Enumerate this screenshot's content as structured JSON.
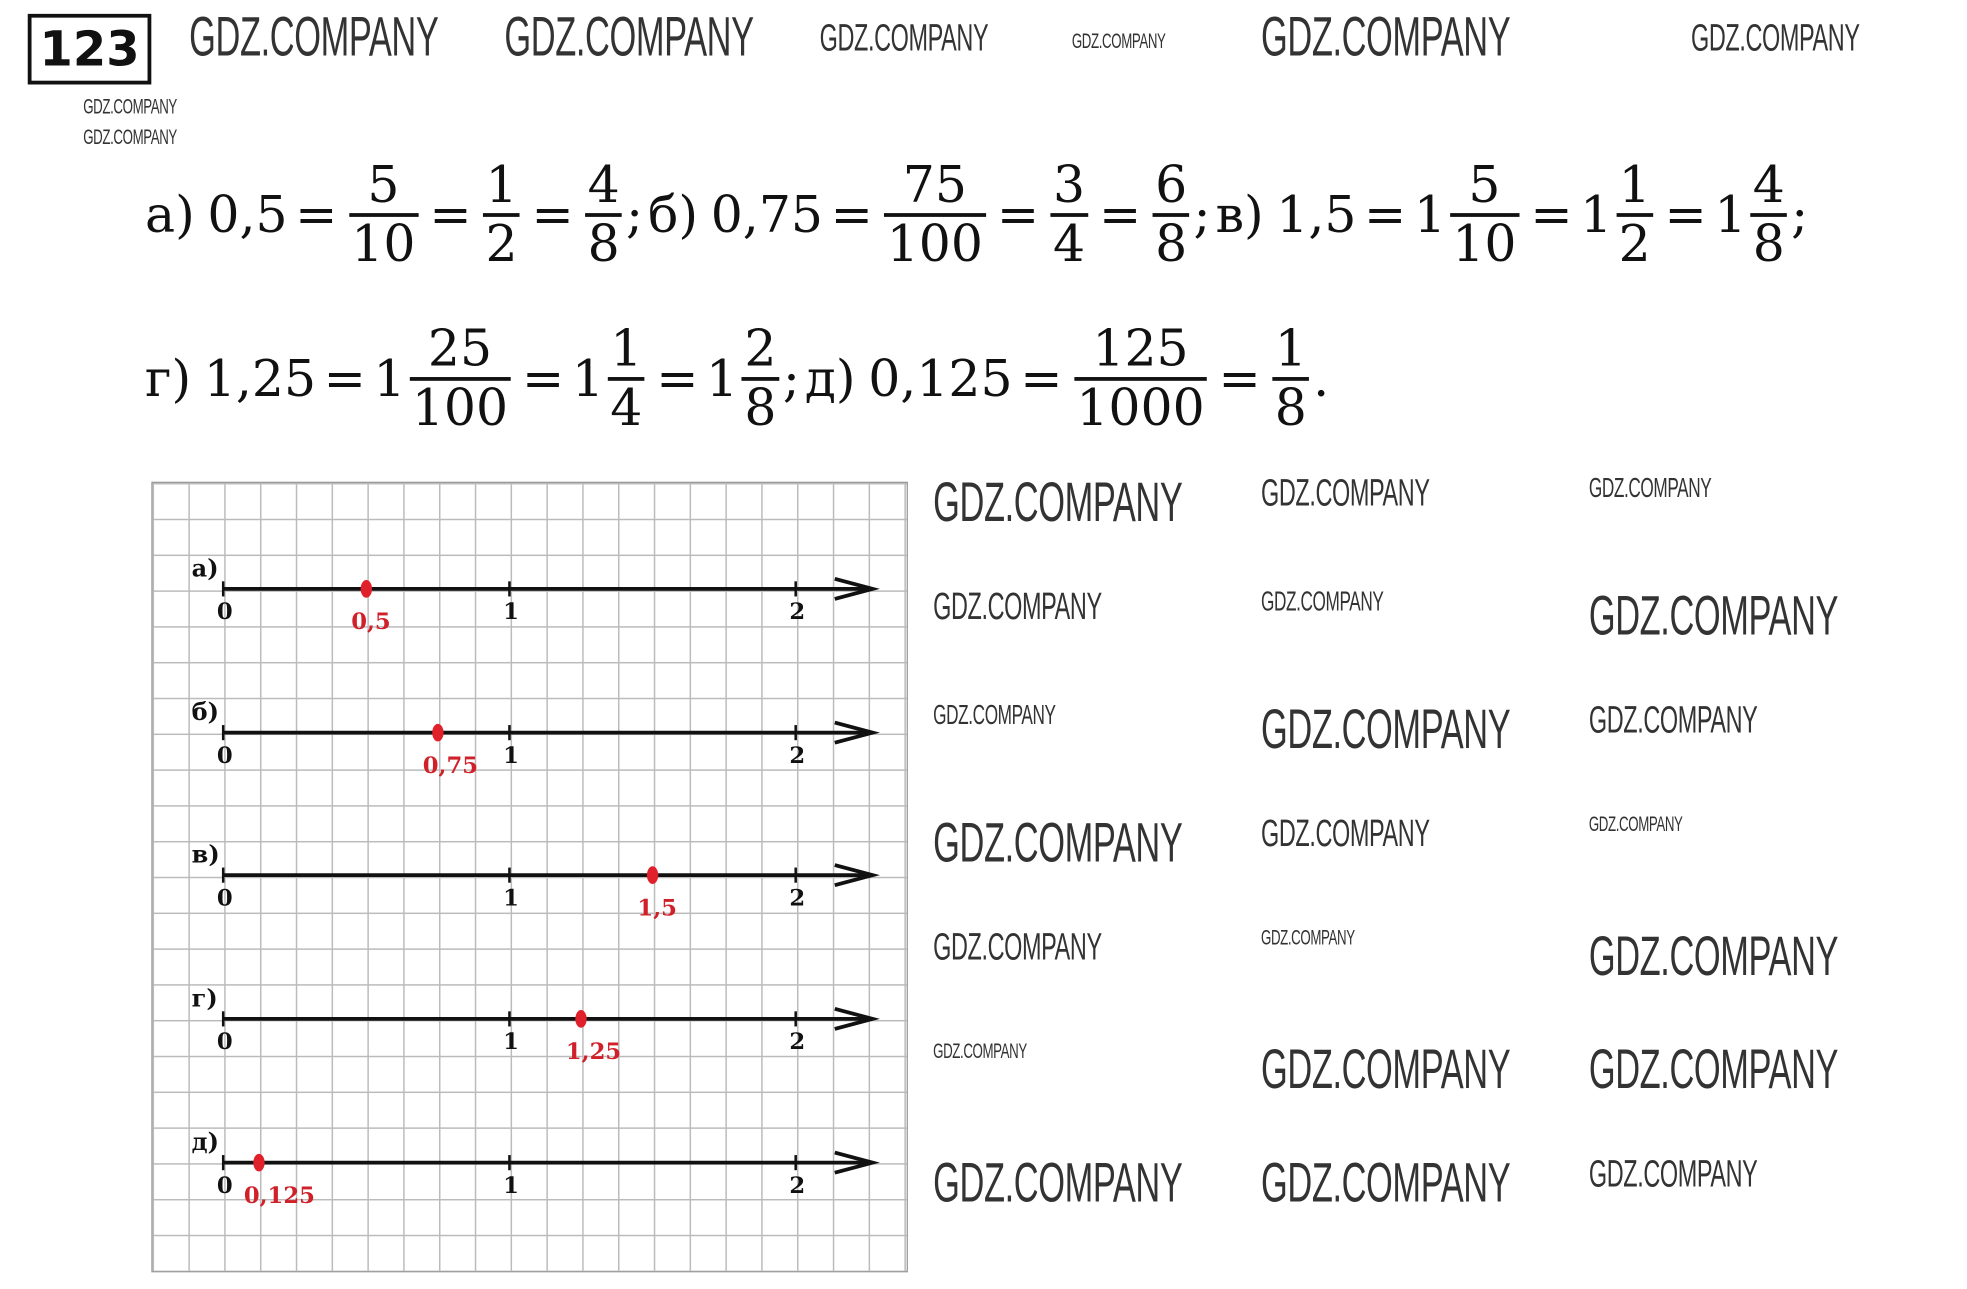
{
  "problem_number": "123",
  "equations": [
    {
      "label": "а)",
      "items": [
        [
          "t",
          "0,5"
        ],
        [
          "op",
          "="
        ],
        [
          "f",
          "5",
          "10"
        ],
        [
          "op",
          "="
        ],
        [
          "f",
          "1",
          "2"
        ],
        [
          "op",
          "="
        ],
        [
          "f",
          "4",
          "8"
        ],
        [
          "t",
          ";"
        ]
      ]
    },
    {
      "label": "б)",
      "items": [
        [
          "t",
          "0,75"
        ],
        [
          "op",
          "="
        ],
        [
          "f",
          "75",
          "100"
        ],
        [
          "op",
          "="
        ],
        [
          "f",
          "3",
          "4"
        ],
        [
          "op",
          "="
        ],
        [
          "f",
          "6",
          "8"
        ],
        [
          "t",
          ";"
        ]
      ]
    },
    {
      "label": "в)",
      "items": [
        [
          "t",
          "1,5"
        ],
        [
          "op",
          "="
        ],
        [
          "t",
          "1"
        ],
        [
          "f",
          "5",
          "10"
        ],
        [
          "op",
          "="
        ],
        [
          "t",
          "1"
        ],
        [
          "f",
          "1",
          "2"
        ],
        [
          "op",
          "="
        ],
        [
          "t",
          "1"
        ],
        [
          "f",
          "4",
          "8"
        ],
        [
          "t",
          ";"
        ]
      ]
    },
    {
      "label": "г)",
      "items": [
        [
          "t",
          "1,25"
        ],
        [
          "op",
          "="
        ],
        [
          "t",
          "1"
        ],
        [
          "f",
          "25",
          "100"
        ],
        [
          "op",
          "="
        ],
        [
          "t",
          "1"
        ],
        [
          "f",
          "1",
          "4"
        ],
        [
          "op",
          "="
        ],
        [
          "t",
          "1"
        ],
        [
          "f",
          "2",
          "8"
        ],
        [
          "t",
          ";"
        ]
      ]
    },
    {
      "label": "д)",
      "items": [
        [
          "t",
          "0,125"
        ],
        [
          "op",
          "="
        ],
        [
          "f",
          "125",
          "1000"
        ],
        [
          "op",
          "="
        ],
        [
          "f",
          "1",
          "8"
        ],
        [
          "t",
          "."
        ]
      ]
    }
  ],
  "number_lines": [
    {
      "label": "а)",
      "ticks": [
        "0",
        "1",
        "2"
      ],
      "point": 0.5,
      "point_label": "0,5"
    },
    {
      "label": "б)",
      "ticks": [
        "0",
        "1",
        "2"
      ],
      "point": 0.75,
      "point_label": "0,75"
    },
    {
      "label": "в)",
      "ticks": [
        "0",
        "1",
        "2"
      ],
      "point": 1.5,
      "point_label": "1,5"
    },
    {
      "label": "г)",
      "ticks": [
        "0",
        "1",
        "2"
      ],
      "point": 1.25,
      "point_label": "1,25"
    },
    {
      "label": "д)",
      "ticks": [
        "0",
        "1",
        "2"
      ],
      "point": 0.125,
      "point_label": "0,125"
    }
  ],
  "colors": {
    "point": "#e0202a",
    "text": "#111111"
  },
  "watermark": "GDZ.COMPANY"
}
